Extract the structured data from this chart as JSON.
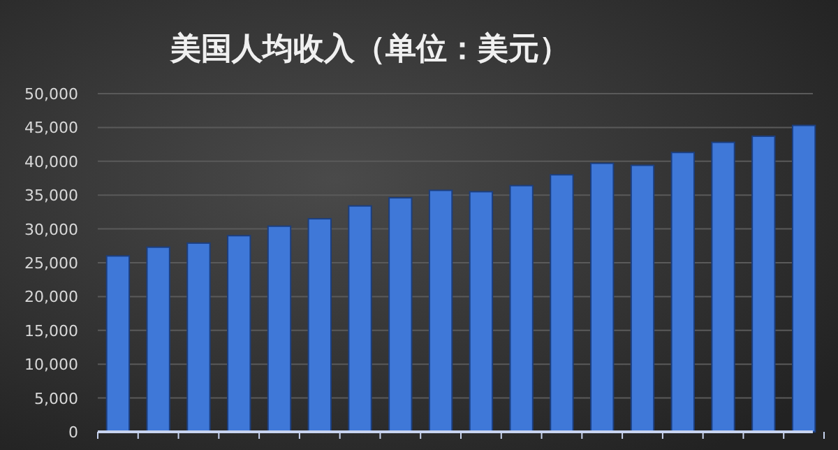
{
  "chart_data": {
    "type": "bar",
    "title": "美国人均收入（单位：美元）",
    "categories": [
      null,
      null,
      null,
      null,
      null,
      null,
      null,
      null,
      null,
      null,
      null,
      null,
      null,
      null,
      null,
      null,
      null,
      null
    ],
    "values": [
      26000,
      27300,
      27900,
      29000,
      30400,
      31500,
      33400,
      34600,
      35700,
      35500,
      36400,
      38000,
      39700,
      39400,
      41300,
      42800,
      43700,
      45300
    ],
    "color": "#3f78d8",
    "ylim": [
      0,
      50000
    ],
    "yticks": [
      {
        "value": 0,
        "label": "0"
      },
      {
        "value": 5000,
        "label": "5,000"
      },
      {
        "value": 10000,
        "label": "10,000"
      },
      {
        "value": 15000,
        "label": "15,000"
      },
      {
        "value": 20000,
        "label": "20,000"
      },
      {
        "value": 25000,
        "label": "25,000"
      },
      {
        "value": 30000,
        "label": "30,000"
      },
      {
        "value": 35000,
        "label": "35,000"
      },
      {
        "value": 40000,
        "label": "40,000"
      },
      {
        "value": 45000,
        "label": "45,000"
      },
      {
        "value": 50000,
        "label": "50,000"
      }
    ],
    "grid": "y",
    "tick_labels": "y"
  }
}
